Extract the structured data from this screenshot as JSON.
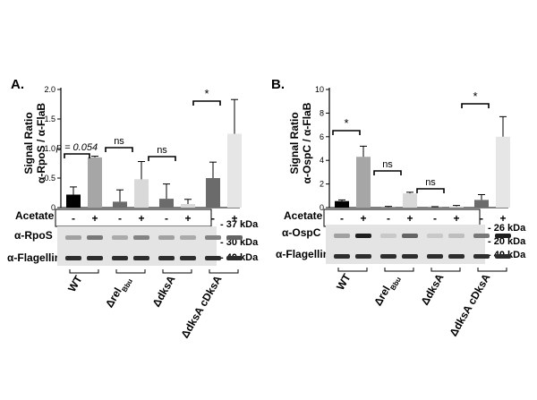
{
  "chart_data": [
    {
      "type": "bar",
      "panel": "A.",
      "ylabel_line1": "Signal Ratio",
      "ylabel_line2": "α-RpoS / α-FlaB",
      "ylim": [
        0,
        2
      ],
      "yticks": [
        "0",
        "0.5",
        "1.0",
        "1.5",
        "2.0"
      ],
      "groups": [
        "WT",
        "Δrel",
        "ΔdksA",
        "ΔdksA cDksA"
      ],
      "group_label_sub": [
        "",
        "Bbu",
        "",
        ""
      ],
      "acetate_labels": [
        "-",
        "+",
        "-",
        "+",
        "-",
        "+",
        "-",
        "+"
      ],
      "values": [
        0.22,
        0.85,
        0.1,
        0.48,
        0.15,
        0.06,
        0.5,
        1.25
      ],
      "errors": [
        0.13,
        0.02,
        0.2,
        0.3,
        0.25,
        0.08,
        0.27,
        0.58
      ],
      "colors": [
        "#000000",
        "#a6a6a6",
        "#6b6b6b",
        "#d9d9d9",
        "#6b6b6b",
        "#d9d9d9",
        "#6b6b6b",
        "#e6e6e6"
      ],
      "annotations": [
        "p = 0.054",
        "ns",
        "ns",
        "*"
      ],
      "row_label": "Acetate",
      "blot_labels": [
        "α-RpoS",
        "α-Flagellin"
      ],
      "kda_labels": [
        "- 37 kDa",
        "- 30 kDa",
        "- 40 kDa"
      ]
    },
    {
      "type": "bar",
      "panel": "B.",
      "ylabel_line1": "Signal Ratio",
      "ylabel_line2": "α-OspC / α-FlaB",
      "ylim": [
        0,
        10
      ],
      "yticks": [
        "0",
        "2",
        "4",
        "6",
        "8",
        "10"
      ],
      "groups": [
        "WT",
        "Δrel",
        "ΔdksA",
        "ΔdksA cDksA"
      ],
      "group_label_sub": [
        "",
        "Bbu",
        "",
        ""
      ],
      "acetate_labels": [
        "-",
        "+",
        "-",
        "+",
        "-",
        "+",
        "-",
        "+"
      ],
      "values": [
        0.55,
        4.3,
        0.05,
        1.2,
        0.05,
        0.1,
        0.65,
        6.0
      ],
      "errors": [
        0.1,
        0.9,
        0.05,
        0.1,
        0.03,
        0.08,
        0.45,
        1.7
      ],
      "colors": [
        "#000000",
        "#a6a6a6",
        "#6b6b6b",
        "#d9d9d9",
        "#6b6b6b",
        "#d9d9d9",
        "#6b6b6b",
        "#e6e6e6"
      ],
      "annotations": [
        "*",
        "ns",
        "ns",
        "*"
      ],
      "row_label": "Acetate",
      "blot_labels": [
        "α-OspC",
        "α-Flagellin"
      ],
      "kda_labels": [
        "- 26 kDa",
        "- 20 kDa",
        "- 40 kDa"
      ]
    }
  ]
}
